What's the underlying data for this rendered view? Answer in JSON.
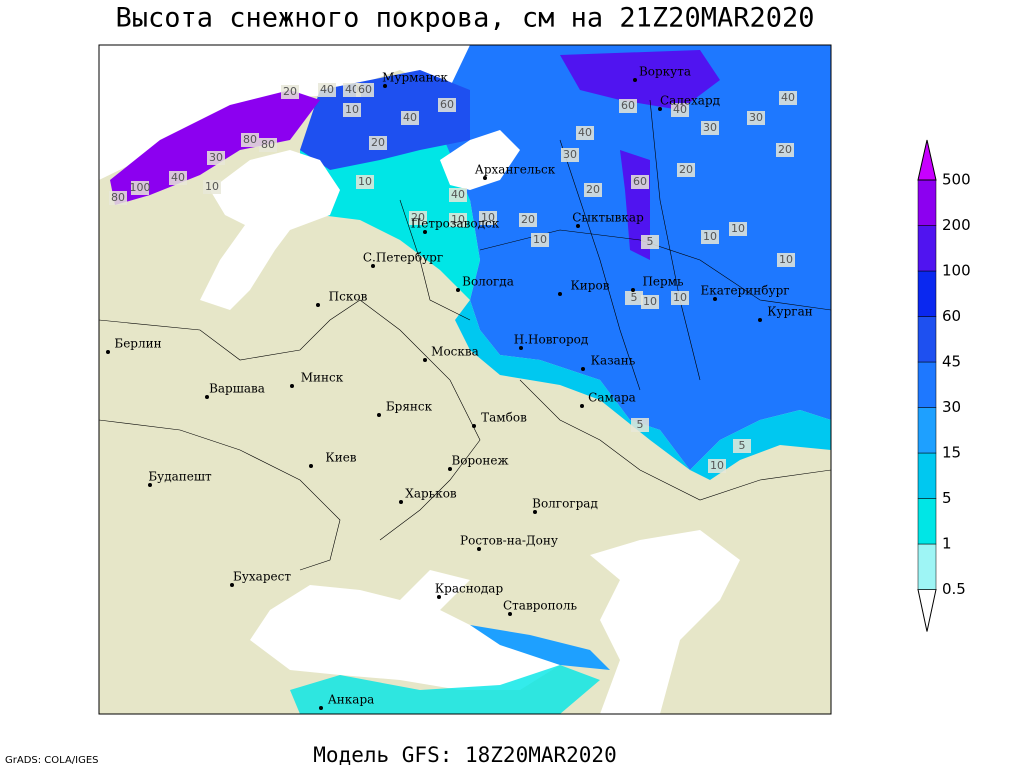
{
  "title": "Высота снежного покрова, см на 21Z20MAR2020",
  "footer": {
    "credit": "GrADS: COLA/IGES",
    "model": "Модель GFS: 18Z20MAR2020"
  },
  "legend": {
    "levels": [
      0.5,
      1,
      5,
      15,
      30,
      45,
      60,
      100,
      200,
      500
    ],
    "colors": [
      "#ffffff",
      "#9ef5f5",
      "#00e6e6",
      "#00c8f0",
      "#1ea0ff",
      "#1e78ff",
      "#1e50f0",
      "#0a28f0",
      "#5014f0",
      "#8c00f0",
      "#c800ff"
    ]
  },
  "cities": [
    "Мурманск",
    "Воркута",
    "Салехард",
    "Архангельск",
    "Петрозаводск",
    "Сыктывкар",
    "С.Петербург",
    "Вологда",
    "Киров",
    "Пермь",
    "Екатеринбург",
    "Курган",
    "Псков",
    "Берлин",
    "Н.Новгород",
    "Москва",
    "Казань",
    "Минск",
    "Варшава",
    "Самара",
    "Брянск",
    "Тамбов",
    "Киев",
    "Воронеж",
    "Будапешт",
    "Харьков",
    "Волгоград",
    "Ростов-на-Дону",
    "Бухарест",
    "Краснодар",
    "Ставрополь",
    "Анкара"
  ],
  "contour_labels": [
    40,
    40,
    60,
    10,
    40,
    60,
    20,
    80,
    80,
    30,
    40,
    100,
    80,
    10,
    20,
    10,
    40,
    30,
    20,
    60,
    40,
    60,
    40,
    30,
    30,
    20,
    40,
    20,
    10,
    20,
    10,
    10,
    20,
    5,
    10,
    10,
    5,
    10,
    10,
    5,
    5,
    10,
    10
  ]
}
